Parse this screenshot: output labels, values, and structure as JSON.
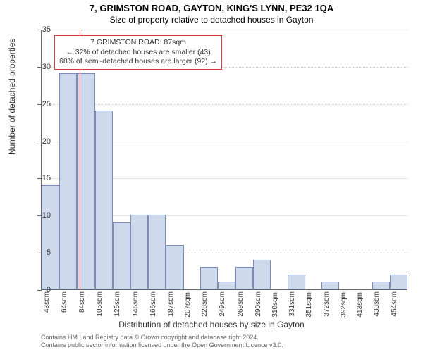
{
  "title_main": "7, GRIMSTON ROAD, GAYTON, KING'S LYNN, PE32 1QA",
  "title_sub": "Size of property relative to detached houses in Gayton",
  "ylabel": "Number of detached properties",
  "xlabel": "Distribution of detached houses by size in Gayton",
  "chart": {
    "type": "histogram",
    "ylim": [
      0,
      35
    ],
    "ytick_step": 5,
    "bar_fill": "#cfd9ec",
    "bar_border": "#7a8db8",
    "grid_color": "#cccccc",
    "background": "#ffffff",
    "refline_color": "#d73a3a",
    "refline_x_index": 2.2,
    "categories": [
      "43sqm",
      "64sqm",
      "84sqm",
      "105sqm",
      "125sqm",
      "146sqm",
      "166sqm",
      "187sqm",
      "207sqm",
      "228sqm",
      "249sqm",
      "269sqm",
      "290sqm",
      "310sqm",
      "331sqm",
      "351sqm",
      "372sqm",
      "392sqm",
      "413sqm",
      "433sqm",
      "454sqm"
    ],
    "values": [
      14,
      29,
      29,
      24,
      9,
      10,
      10,
      6,
      0,
      3,
      1,
      3,
      4,
      0,
      2,
      0,
      1,
      0,
      0,
      1,
      2
    ]
  },
  "annotation": {
    "line1": "7 GRIMSTON ROAD: 87sqm",
    "line2": "← 32% of detached houses are smaller (43)",
    "line3": "68% of semi-detached houses are larger (92) →"
  },
  "footer": {
    "line1": "Contains HM Land Registry data © Crown copyright and database right 2024.",
    "line2": "Contains public sector information licensed under the Open Government Licence v3.0."
  }
}
